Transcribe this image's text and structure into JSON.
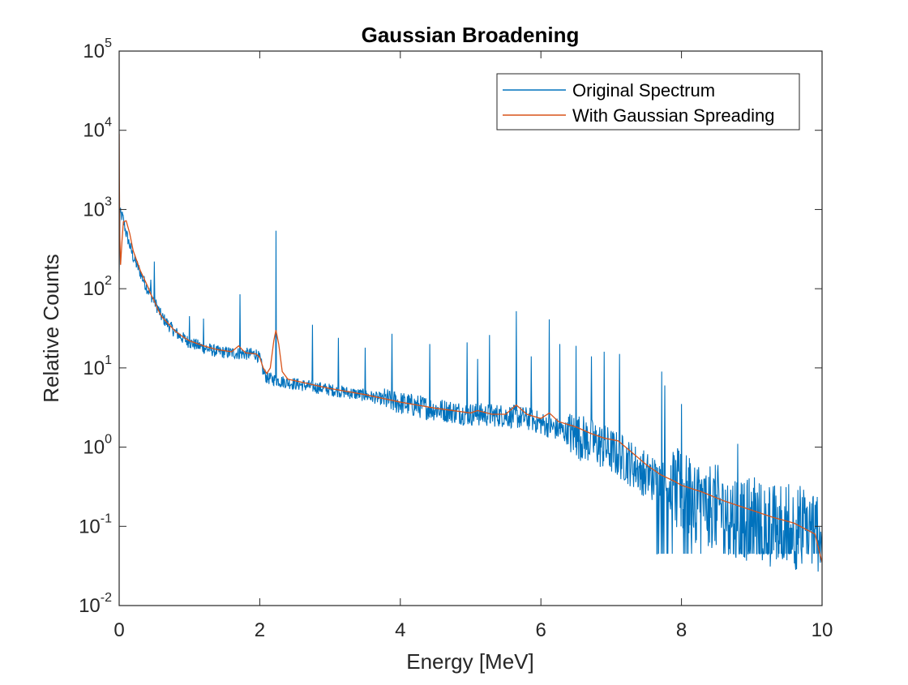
{
  "chart_data": {
    "type": "line",
    "title": "Gaussian Broadening",
    "xlabel": "Energy [MeV]",
    "ylabel": "Relative Counts",
    "xlim": [
      0,
      10
    ],
    "ylim": [
      0.01,
      100000
    ],
    "yscale": "log",
    "grid": false,
    "legend_position": "top-right",
    "x_ticks": [
      {
        "value": 0,
        "label": "0"
      },
      {
        "value": 2,
        "label": "2"
      },
      {
        "value": 4,
        "label": "4"
      },
      {
        "value": 6,
        "label": "6"
      },
      {
        "value": 8,
        "label": "8"
      },
      {
        "value": 10,
        "label": "10"
      }
    ],
    "y_ticks": [
      {
        "value": 0.01,
        "base": "10",
        "exp": "-2"
      },
      {
        "value": 0.1,
        "base": "10",
        "exp": "-1"
      },
      {
        "value": 1,
        "base": "10",
        "exp": "0"
      },
      {
        "value": 10,
        "base": "10",
        "exp": "1"
      },
      {
        "value": 100,
        "base": "10",
        "exp": "2"
      },
      {
        "value": 1000,
        "base": "10",
        "exp": "3"
      },
      {
        "value": 10000,
        "base": "10",
        "exp": "4"
      },
      {
        "value": 100000,
        "base": "10",
        "exp": "5"
      }
    ],
    "series": [
      {
        "name": "Original Spectrum",
        "color": "#0072BD",
        "noise": true,
        "baseline": [
          [
            0.0,
            150
          ],
          [
            0.01,
            900
          ],
          [
            0.05,
            800
          ],
          [
            0.1,
            500
          ],
          [
            0.2,
            250
          ],
          [
            0.3,
            160
          ],
          [
            0.4,
            100
          ],
          [
            0.5,
            70
          ],
          [
            0.6,
            45
          ],
          [
            0.7,
            35
          ],
          [
            0.8,
            28
          ],
          [
            0.9,
            24
          ],
          [
            1.0,
            21
          ],
          [
            1.2,
            18
          ],
          [
            1.4,
            16
          ],
          [
            1.6,
            15.5
          ],
          [
            1.8,
            15
          ],
          [
            1.95,
            15
          ],
          [
            2.0,
            13
          ],
          [
            2.05,
            9
          ],
          [
            2.1,
            7.5
          ],
          [
            2.3,
            6.8
          ],
          [
            2.5,
            6.3
          ],
          [
            2.8,
            5.7
          ],
          [
            3.0,
            5.3
          ],
          [
            3.5,
            4.5
          ],
          [
            4.0,
            3.6
          ],
          [
            4.5,
            3.0
          ],
          [
            5.0,
            2.6
          ],
          [
            5.5,
            2.5
          ],
          [
            5.8,
            2.3
          ],
          [
            6.0,
            2.0
          ],
          [
            6.3,
            1.6
          ],
          [
            6.6,
            1.3
          ],
          [
            6.9,
            1.0
          ],
          [
            7.2,
            0.7
          ],
          [
            7.5,
            0.45
          ],
          [
            7.8,
            0.32
          ],
          [
            8.0,
            0.26
          ],
          [
            8.3,
            0.2
          ],
          [
            8.6,
            0.16
          ],
          [
            9.0,
            0.12
          ],
          [
            9.5,
            0.1
          ],
          [
            10.0,
            0.09
          ]
        ],
        "peaks": [
          [
            0.5,
            220
          ],
          [
            0.45,
            130
          ],
          [
            1.0,
            45
          ],
          [
            1.2,
            42
          ],
          [
            1.72,
            85
          ],
          [
            2.23,
            540
          ],
          [
            2.75,
            35
          ],
          [
            3.12,
            24
          ],
          [
            3.5,
            18
          ],
          [
            3.88,
            27
          ],
          [
            4.42,
            20
          ],
          [
            4.95,
            21
          ],
          [
            5.1,
            13
          ],
          [
            5.27,
            26
          ],
          [
            5.65,
            52
          ],
          [
            5.86,
            14
          ],
          [
            6.12,
            41
          ],
          [
            6.27,
            20
          ],
          [
            6.5,
            19
          ],
          [
            6.72,
            14
          ],
          [
            6.9,
            16
          ],
          [
            7.12,
            15
          ],
          [
            7.72,
            9
          ],
          [
            7.76,
            6
          ],
          [
            8.0,
            3.5
          ],
          [
            8.8,
            1.1
          ]
        ]
      },
      {
        "name": "With Gaussian Spreading",
        "color": "#D95319",
        "noise": false,
        "points": [
          [
            0.0,
            9000
          ],
          [
            0.003,
            2500
          ],
          [
            0.008,
            500
          ],
          [
            0.02,
            200
          ],
          [
            0.04,
            400
          ],
          [
            0.06,
            700
          ],
          [
            0.1,
            720
          ],
          [
            0.15,
            500
          ],
          [
            0.2,
            300
          ],
          [
            0.3,
            170
          ],
          [
            0.4,
            110
          ],
          [
            0.45,
            85
          ],
          [
            0.5,
            70
          ],
          [
            0.55,
            55
          ],
          [
            0.6,
            45
          ],
          [
            0.7,
            36
          ],
          [
            0.8,
            29
          ],
          [
            0.9,
            25
          ],
          [
            1.0,
            22
          ],
          [
            1.2,
            19
          ],
          [
            1.4,
            17
          ],
          [
            1.6,
            16
          ],
          [
            1.7,
            19
          ],
          [
            1.75,
            17
          ],
          [
            1.8,
            15.5
          ],
          [
            1.95,
            15
          ],
          [
            2.0,
            13.5
          ],
          [
            2.05,
            10
          ],
          [
            2.1,
            8.5
          ],
          [
            2.15,
            10
          ],
          [
            2.2,
            22
          ],
          [
            2.23,
            30
          ],
          [
            2.27,
            20
          ],
          [
            2.32,
            9
          ],
          [
            2.4,
            7.2
          ],
          [
            2.6,
            6.6
          ],
          [
            2.8,
            6
          ],
          [
            3.0,
            5.5
          ],
          [
            3.5,
            4.6
          ],
          [
            4.0,
            3.7
          ],
          [
            4.5,
            3.1
          ],
          [
            5.0,
            2.7
          ],
          [
            5.1,
            2.9
          ],
          [
            5.3,
            2.6
          ],
          [
            5.5,
            2.6
          ],
          [
            5.65,
            3.4
          ],
          [
            5.8,
            2.6
          ],
          [
            6.0,
            2.3
          ],
          [
            6.12,
            2.7
          ],
          [
            6.25,
            2.1
          ],
          [
            6.5,
            1.8
          ],
          [
            6.7,
            1.5
          ],
          [
            6.9,
            1.3
          ],
          [
            7.1,
            1.2
          ],
          [
            7.3,
            0.85
          ],
          [
            7.5,
            0.6
          ],
          [
            7.7,
            0.45
          ],
          [
            7.9,
            0.37
          ],
          [
            8.0,
            0.33
          ],
          [
            8.3,
            0.27
          ],
          [
            8.6,
            0.21
          ],
          [
            9.0,
            0.16
          ],
          [
            9.3,
            0.13
          ],
          [
            9.6,
            0.11
          ],
          [
            9.9,
            0.08
          ],
          [
            10.0,
            0.035
          ]
        ]
      }
    ]
  }
}
